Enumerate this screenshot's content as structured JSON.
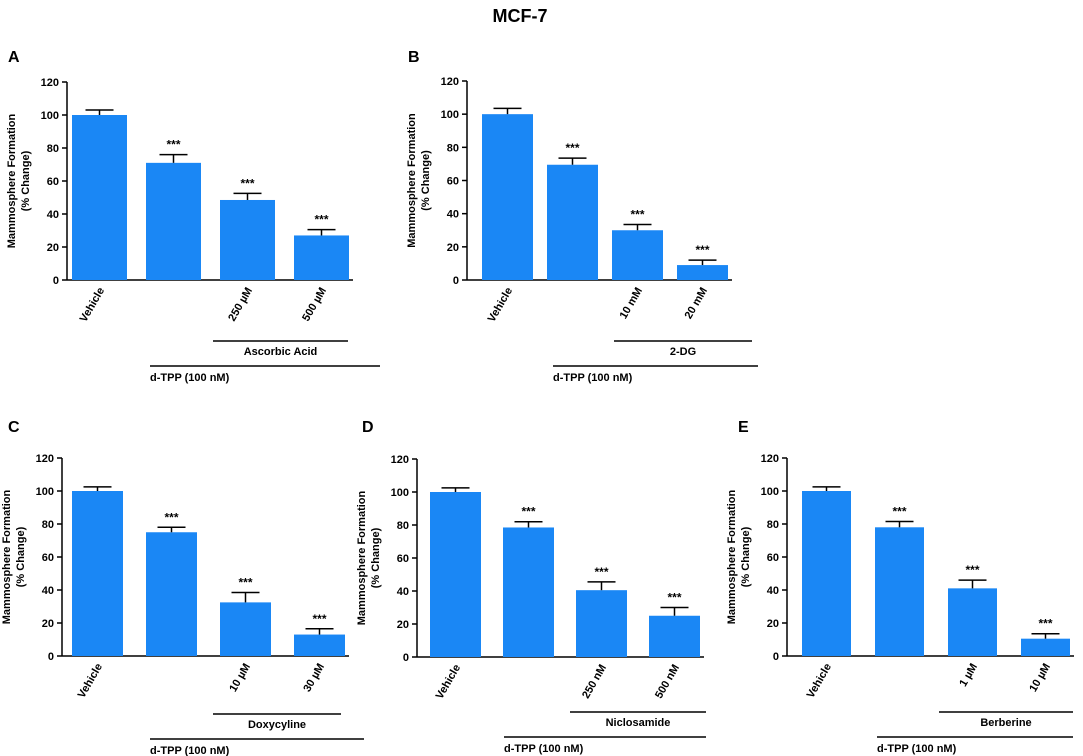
{
  "figure_title": "MCF-7",
  "chart_data": [
    {
      "panel": "A",
      "type": "bar",
      "ylabel": [
        "Mammosphere Formation",
        "(% Change)"
      ],
      "yticks": [
        0,
        20,
        40,
        60,
        80,
        100,
        120
      ],
      "ylim": [
        0,
        120
      ],
      "categories": [
        "Vehicle",
        "",
        "250 µM",
        "500 µM"
      ],
      "values": [
        100,
        71,
        48.5,
        27
      ],
      "errors": [
        3,
        5,
        4,
        3.5
      ],
      "significance": [
        "",
        "***",
        "***",
        "***"
      ],
      "drug_label": "Ascorbic Acid",
      "base_label": "d-TPP (100 nM)",
      "bar_color": "#1a87f5"
    },
    {
      "panel": "B",
      "type": "bar",
      "ylabel": [
        "Mammosphere Formation",
        "(% Change)"
      ],
      "yticks": [
        0,
        20,
        40,
        60,
        80,
        100,
        120
      ],
      "ylim": [
        0,
        120
      ],
      "categories": [
        "Vehicle",
        "",
        "10 mM",
        "20 mM"
      ],
      "values": [
        100,
        69.5,
        30,
        9
      ],
      "errors": [
        3.5,
        4,
        3.5,
        3
      ],
      "significance": [
        "",
        "***",
        "***",
        "***"
      ],
      "drug_label": "2-DG",
      "base_label": "d-TPP (100 nM)",
      "bar_color": "#1a87f5"
    },
    {
      "panel": "C",
      "type": "bar",
      "ylabel": [
        "Mammosphere Formation",
        "(% Change)"
      ],
      "yticks": [
        0,
        20,
        40,
        60,
        80,
        100,
        120
      ],
      "ylim": [
        0,
        120
      ],
      "categories": [
        "Vehicle",
        "",
        "10 µM",
        "30 µM"
      ],
      "values": [
        100,
        75,
        32.5,
        13
      ],
      "errors": [
        2.5,
        3,
        6,
        3.5
      ],
      "significance": [
        "",
        "***",
        "***",
        "***"
      ],
      "drug_label": "Doxycyline",
      "base_label": "d-TPP (100 nM)",
      "bar_color": "#1a87f5"
    },
    {
      "panel": "D",
      "type": "bar",
      "ylabel": [
        "Mammosphere Formation",
        "(% Change)"
      ],
      "yticks": [
        0,
        20,
        40,
        60,
        80,
        100,
        120
      ],
      "ylim": [
        0,
        120
      ],
      "categories": [
        "Vehicle",
        "",
        "250 nM",
        "500 nM"
      ],
      "values": [
        100,
        78.5,
        40.5,
        25
      ],
      "errors": [
        2.5,
        3.5,
        5,
        5
      ],
      "significance": [
        "",
        "***",
        "***",
        "***"
      ],
      "drug_label": "Niclosamide",
      "base_label": "d-TPP (100 nM)",
      "bar_color": "#1a87f5"
    },
    {
      "panel": "E",
      "type": "bar",
      "ylabel": [
        "Mammosphere Formation",
        "(% Change)"
      ],
      "yticks": [
        0,
        20,
        40,
        60,
        80,
        100,
        120
      ],
      "ylim": [
        0,
        120
      ],
      "categories": [
        "Vehicle",
        "",
        "1 µM",
        "10 µM"
      ],
      "values": [
        100,
        78,
        41,
        10.5
      ],
      "errors": [
        2.5,
        3.5,
        5,
        3
      ],
      "significance": [
        "",
        "***",
        "***",
        "***"
      ],
      "drug_label": "Berberine",
      "base_label": "d-TPP (100 nM)",
      "bar_color": "#1a87f5"
    }
  ]
}
